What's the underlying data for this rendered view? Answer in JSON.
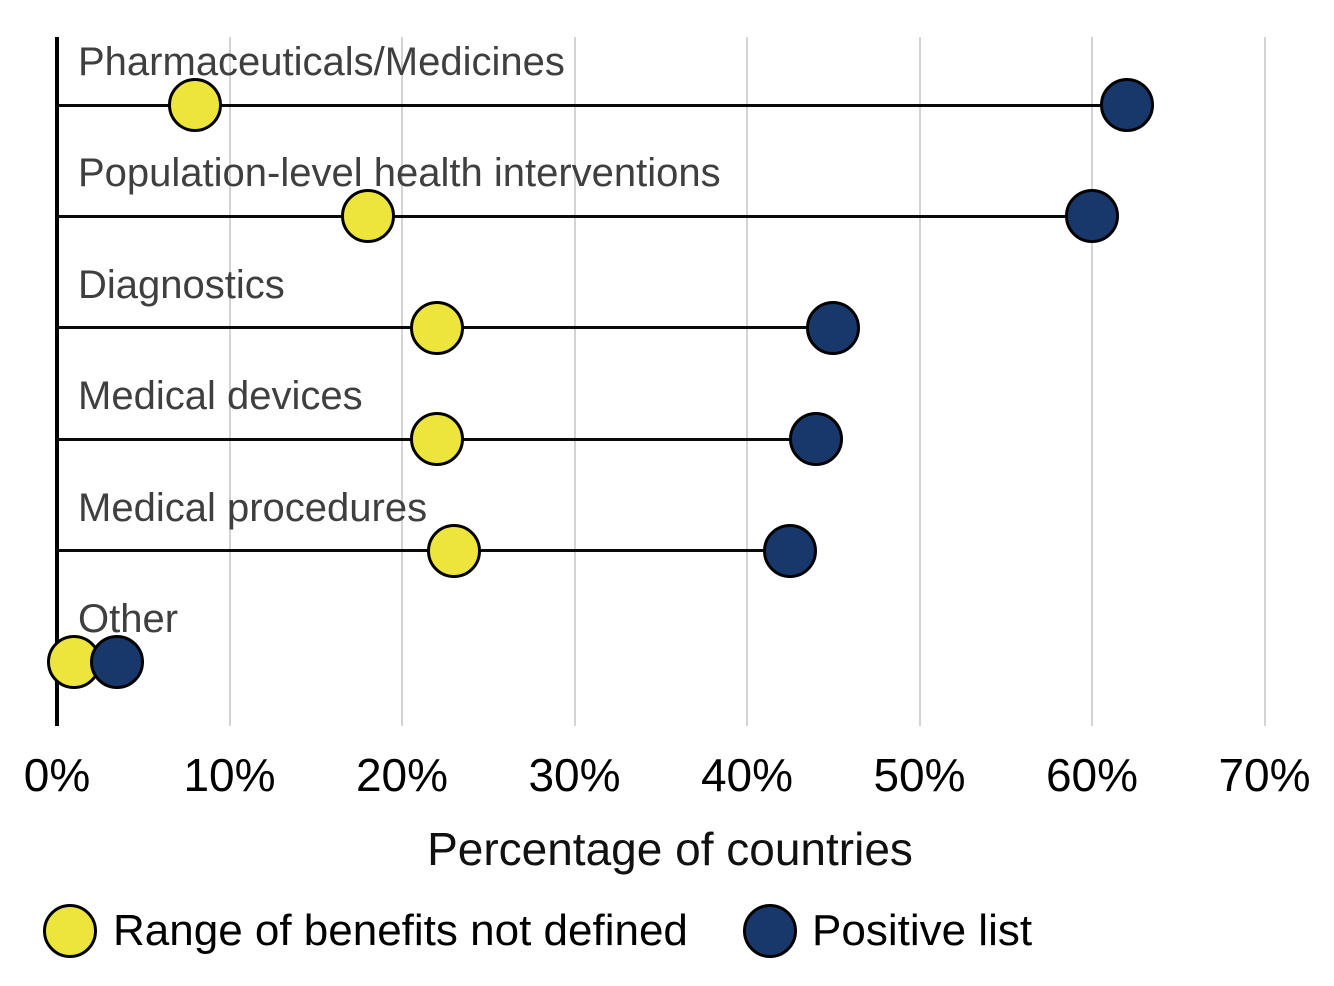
{
  "chart_data": {
    "type": "dumbbell",
    "title": "",
    "xlabel": "Percentage of countries",
    "x_ticks": [
      "0%",
      "10%",
      "20%",
      "30%",
      "40%",
      "50%",
      "60%",
      "70%"
    ],
    "x_tick_values": [
      0,
      10,
      20,
      30,
      40,
      50,
      60,
      70
    ],
    "xlim": [
      0,
      71
    ],
    "grid": "vertical-only",
    "legend_position": "bottom",
    "categories": [
      "Pharmaceuticals/Medicines",
      "Population-level health interventions",
      "Diagnostics",
      "Medical devices",
      "Medical procedures",
      "Other"
    ],
    "series": [
      {
        "name": "Range of benefits not defined",
        "color": "#ede53c",
        "values": [
          8,
          18,
          22,
          22,
          23,
          1
        ]
      },
      {
        "name": "Positive list",
        "color": "#18386b",
        "values": [
          62,
          60,
          45,
          44,
          42.5,
          3.5
        ]
      }
    ],
    "colors": {
      "gridline": "#d3d3d3",
      "axis": "#000000",
      "connector": "#0a0a0a",
      "category_label": "#3f3f3f",
      "tick_label": "#000000"
    }
  },
  "legend": {
    "item1": "Range of benefits not defined",
    "item2": "Positive list"
  },
  "axis": {
    "x_title": "Percentage of countries"
  }
}
